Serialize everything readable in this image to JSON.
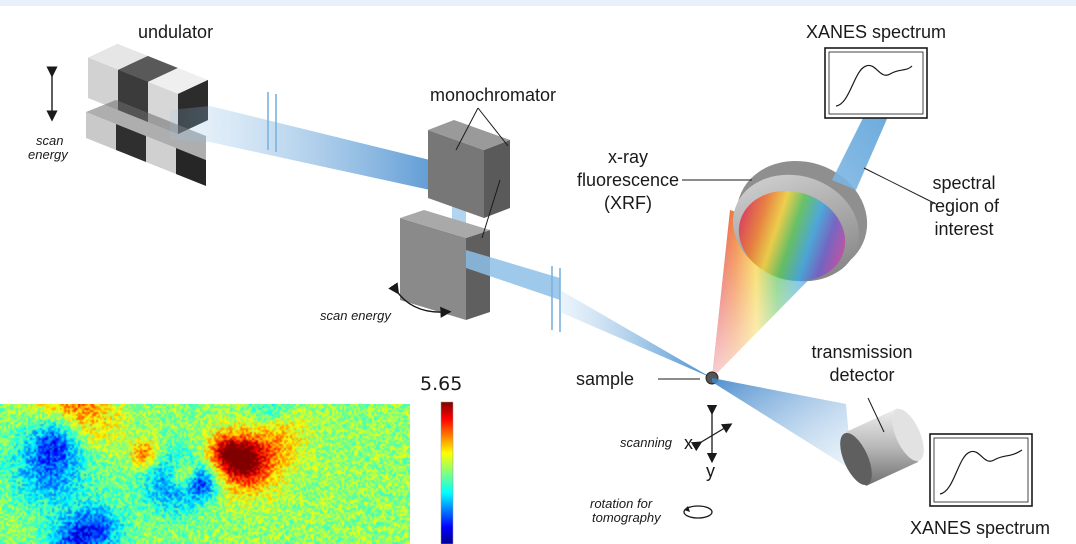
{
  "labels": {
    "undulator": "undulator",
    "scan_energy_left_line1": "scan",
    "scan_energy_left_line2": "energy",
    "monochromator": "monochromator",
    "scan_energy_mono": "scan energy",
    "xrf_line1": "x-ray",
    "xrf_line2": "fluorescence",
    "xrf_line3": "(XRF)",
    "xanes_top": "XANES spectrum",
    "spectral_line1": "spectral",
    "spectral_line2": "region of",
    "spectral_line3": "interest",
    "sample": "sample",
    "transmission_line1": "transmission",
    "transmission_line2": "detector",
    "scanning": "scanning",
    "axis_x": "x",
    "axis_y": "y",
    "rotation_line1": "rotation for",
    "rotation_line2": "tomography",
    "xanes_bottom": "XANES spectrum"
  },
  "colorbar": {
    "max_label": "5.65",
    "colormap": "jet"
  },
  "colors": {
    "beam": "#8cc0e6",
    "beam_light": "#d4e8f6",
    "block_dark": "#3c3c3c",
    "block_light": "#c8c8c8",
    "mirror": "#6e6e6e",
    "detector": "#b0b0b0"
  }
}
